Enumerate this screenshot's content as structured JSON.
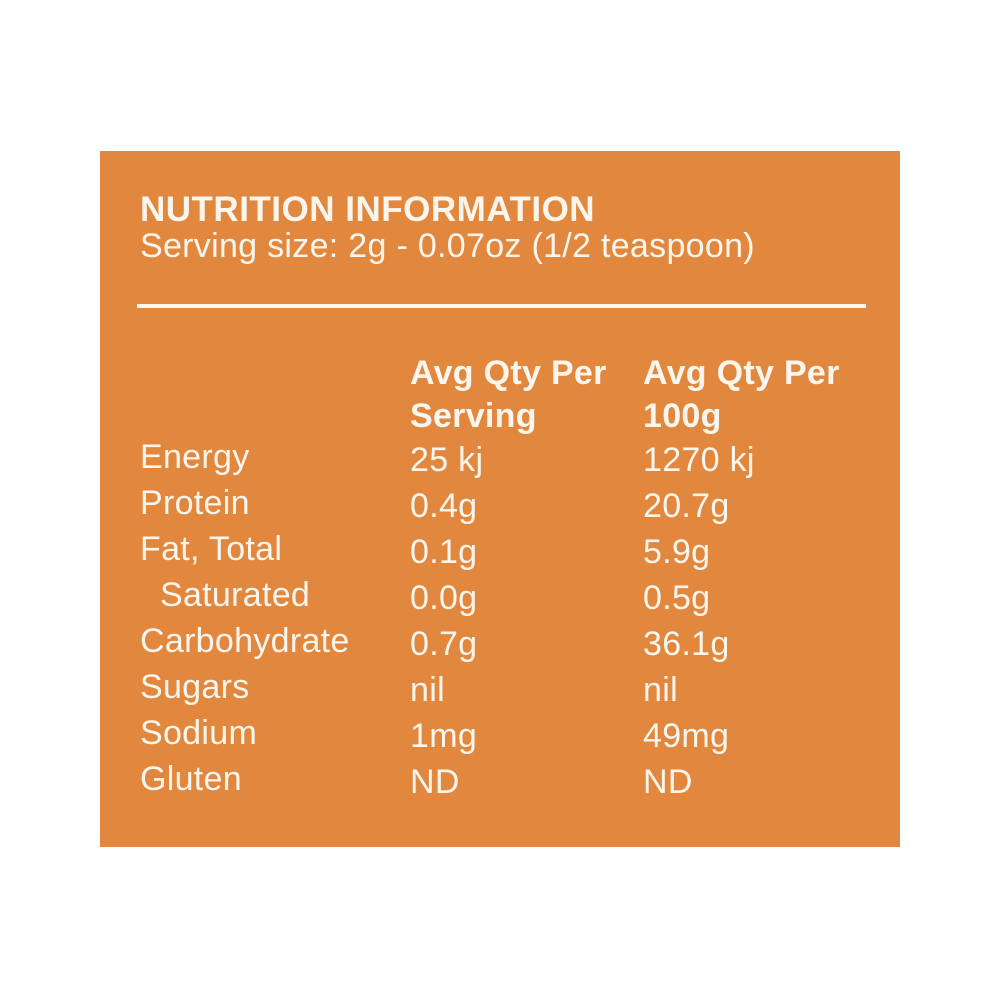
{
  "page": {
    "background_color": "#FFFFFF"
  },
  "panel": {
    "background_color": "#E2873E",
    "text_color": "#FAF6EE",
    "title": "NUTRITION INFORMATION",
    "serving_size_line": "Serving size: 2g - 0.07oz (1/2 teaspoon)"
  },
  "table": {
    "headers": {
      "per_serving_line1": "Avg Qty Per",
      "per_serving_line2": "Serving",
      "per_100g_line1": "Avg Qty Per",
      "per_100g_line2": "100g"
    },
    "rows": [
      {
        "label": "Energy",
        "per_serving": "25 kj",
        "per_100g": "1270 kj",
        "indent": false
      },
      {
        "label": "Protein",
        "per_serving": "0.4g",
        "per_100g": "20.7g",
        "indent": false
      },
      {
        "label": "Fat, Total",
        "per_serving": "0.1g",
        "per_100g": "5.9g",
        "indent": false
      },
      {
        "label": "Saturated",
        "per_serving": "0.0g",
        "per_100g": "0.5g",
        "indent": true
      },
      {
        "label": "Carbohydrate",
        "per_serving": "0.7g",
        "per_100g": "36.1g",
        "indent": false
      },
      {
        "label": "Sugars",
        "per_serving": "nil",
        "per_100g": "nil",
        "indent": false
      },
      {
        "label": "Sodium",
        "per_serving": "1mg",
        "per_100g": "49mg",
        "indent": false
      },
      {
        "label": "Gluten",
        "per_serving": "ND",
        "per_100g": "ND",
        "indent": false
      }
    ]
  }
}
